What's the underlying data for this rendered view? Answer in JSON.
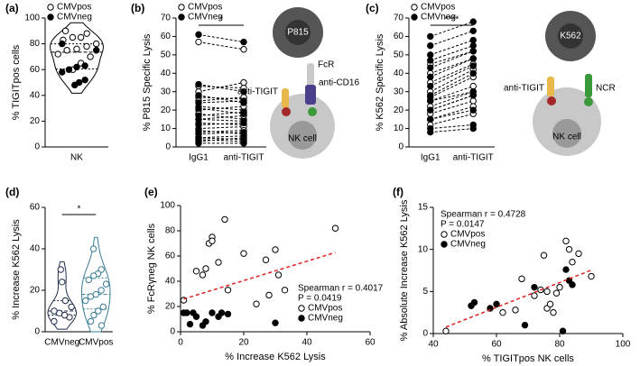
{
  "chart_data": [
    {
      "type": "violin",
      "label": "(a)",
      "ylabel": "% TIGITpos cells",
      "categories": [
        "NK"
      ],
      "ylim": [
        0,
        100
      ],
      "yticks": [
        0,
        20,
        40,
        60,
        80,
        100
      ],
      "legend": "upper left",
      "series": [
        {
          "name": "CMVpos",
          "color": "#000000",
          "filled": false,
          "values": [
            90,
            88,
            85,
            85,
            83,
            80,
            78,
            76,
            75,
            72,
            70,
            65,
            60
          ]
        },
        {
          "name": "CMVneg",
          "color": "#000000",
          "filled": true,
          "values": [
            80,
            75,
            63,
            62,
            60,
            58,
            52,
            50,
            48
          ]
        }
      ]
    },
    {
      "type": "paired",
      "label": "(b)",
      "ylabel": "% P815 Specific Lysis",
      "categories": [
        "IgG1",
        "anti-TIGIT"
      ],
      "ylim": [
        0,
        70
      ],
      "yticks": [
        0,
        10,
        20,
        30,
        40,
        50,
        60,
        70
      ],
      "legend": "upper left",
      "significance": "*",
      "series": [
        {
          "name": "CMVpos",
          "color": "#000000",
          "filled": false,
          "values": [
            [
              57,
              53
            ],
            [
              33,
              32
            ],
            [
              30,
              35
            ],
            [
              27,
              26
            ],
            [
              25,
              27
            ],
            [
              22,
              20
            ],
            [
              20,
              22
            ],
            [
              18,
              15
            ],
            [
              15,
              17
            ],
            [
              13,
              12
            ],
            [
              10,
              11
            ],
            [
              8,
              9
            ],
            [
              5,
              6
            ],
            [
              4,
              3
            ]
          ]
        },
        {
          "name": "CMVneg",
          "color": "#000000",
          "filled": true,
          "values": [
            [
              61,
              57
            ],
            [
              34,
              30
            ],
            [
              28,
              24
            ],
            [
              24,
              25
            ],
            [
              21,
              18
            ],
            [
              17,
              19
            ],
            [
              15,
              14
            ],
            [
              12,
              13
            ],
            [
              9,
              7
            ],
            [
              7,
              8
            ],
            [
              5,
              4
            ],
            [
              3,
              5
            ],
            [
              2,
              2
            ]
          ]
        }
      ]
    },
    {
      "type": "paired",
      "label": "(c)",
      "ylabel": "% K562 Specific Lysis",
      "categories": [
        "IgG1",
        "anti-TIGIT"
      ],
      "ylim": [
        0,
        70
      ],
      "yticks": [
        0,
        10,
        20,
        30,
        40,
        50,
        60,
        70
      ],
      "legend": "upper left",
      "significance": "****",
      "series": [
        {
          "name": "CMVpos",
          "color": "#000000",
          "filled": false,
          "values": [
            [
              45,
              52
            ],
            [
              40,
              48
            ],
            [
              35,
              45
            ],
            [
              30,
              42
            ],
            [
              27,
              38
            ],
            [
              25,
              33
            ],
            [
              22,
              30
            ],
            [
              20,
              28
            ],
            [
              18,
              25
            ],
            [
              15,
              22
            ],
            [
              12,
              18
            ]
          ]
        },
        {
          "name": "CMVneg",
          "color": "#000000",
          "filled": true,
          "values": [
            [
              60,
              68
            ],
            [
              55,
              63
            ],
            [
              50,
              58
            ],
            [
              47,
              55
            ],
            [
              43,
              52
            ],
            [
              38,
              48
            ],
            [
              33,
              44
            ],
            [
              28,
              40
            ],
            [
              25,
              30
            ],
            [
              20,
              28
            ],
            [
              15,
              20
            ],
            [
              10,
              12
            ],
            [
              8,
              10
            ]
          ]
        }
      ]
    },
    {
      "type": "violin",
      "label": "(d)",
      "ylabel": "% Increase K562 Lysis",
      "categories": [
        "CMVneg",
        "CMVpos"
      ],
      "ylim": [
        0,
        60
      ],
      "yticks": [
        0,
        20,
        40,
        60
      ],
      "significance": "*",
      "colors": [
        "#1f2d4a",
        "#3a7d94"
      ],
      "values": [
        [
          5,
          7,
          8,
          9,
          10,
          12,
          15,
          24,
          30
        ],
        [
          40,
          30,
          28,
          27,
          25,
          23,
          20,
          18,
          17,
          15,
          12,
          10,
          8,
          5,
          3
        ]
      ]
    },
    {
      "type": "scatter",
      "label": "(e)",
      "xlabel": "% Increase K562 Lysis",
      "ylabel": "% FcRγneg NK cells",
      "xlim": [
        0,
        60
      ],
      "xticks": [
        0,
        20,
        40,
        60
      ],
      "ylim": [
        0,
        100
      ],
      "yticks": [
        0,
        20,
        40,
        60,
        80,
        100
      ],
      "legend": "lower right",
      "trend_color": "#e02020",
      "stats": [
        "Spearman r = 0.4017",
        "P = 0.0419"
      ],
      "series": [
        {
          "name": "CMVpos",
          "color": "#000000",
          "filled": false,
          "x": [
            1,
            5,
            7,
            8,
            9,
            10,
            10,
            12,
            14,
            15,
            20,
            24,
            27,
            28,
            30,
            31,
            33,
            49
          ],
          "y": [
            25,
            48,
            45,
            50,
            70,
            75,
            72,
            55,
            89,
            33,
            62,
            22,
            57,
            29,
            65,
            45,
            33,
            82
          ]
        },
        {
          "name": "CMVneg",
          "color": "#000000",
          "filled": true,
          "x": [
            1,
            2,
            3,
            4,
            5,
            7,
            8,
            10,
            12,
            13,
            15,
            30
          ],
          "y": [
            15,
            15,
            6,
            15,
            12,
            5,
            8,
            15,
            12,
            15,
            14,
            7
          ]
        }
      ]
    },
    {
      "type": "scatter",
      "label": "(f)",
      "xlabel": "% TIGITpos NK cells",
      "ylabel": "% Absolute Increase K562 Lysis",
      "xlim": [
        40,
        100
      ],
      "xticks": [
        40,
        60,
        80,
        100
      ],
      "ylim": [
        0,
        15
      ],
      "yticks": [
        0,
        5,
        10,
        15
      ],
      "legend": "upper left",
      "trend_color": "#e02020",
      "stats": [
        "Spearman r = 0.4728",
        "P = 0.0147"
      ],
      "series": [
        {
          "name": "CMVpos",
          "color": "#000000",
          "filled": false,
          "x": [
            44,
            62,
            66,
            68,
            72,
            74,
            75,
            76,
            77,
            78,
            79,
            80,
            82,
            83,
            84,
            86,
            90,
            76
          ],
          "y": [
            0.3,
            2.5,
            2.8,
            6.5,
            4.5,
            5.2,
            9.3,
            3,
            3.5,
            2.5,
            4.8,
            5.5,
            11,
            10,
            8.5,
            9.5,
            6.8,
            5
          ]
        },
        {
          "name": "CMVneg",
          "color": "#000000",
          "filled": true,
          "x": [
            52,
            53,
            58,
            60,
            69,
            81,
            82,
            83,
            84,
            72
          ],
          "y": [
            3.3,
            3.7,
            3,
            3.5,
            1,
            0.3,
            7.6,
            6.3,
            5.8,
            5.5
          ]
        }
      ]
    }
  ],
  "diagrams": [
    {
      "cell": "P815",
      "receptor": "FcR",
      "antibody": "anti-CD16",
      "blocker": "anti-TIGIT",
      "nk": "NK cell"
    },
    {
      "cell": "K562",
      "receptor": "NCR",
      "blocker": "anti-TIGIT",
      "nk": "NK cell"
    }
  ]
}
